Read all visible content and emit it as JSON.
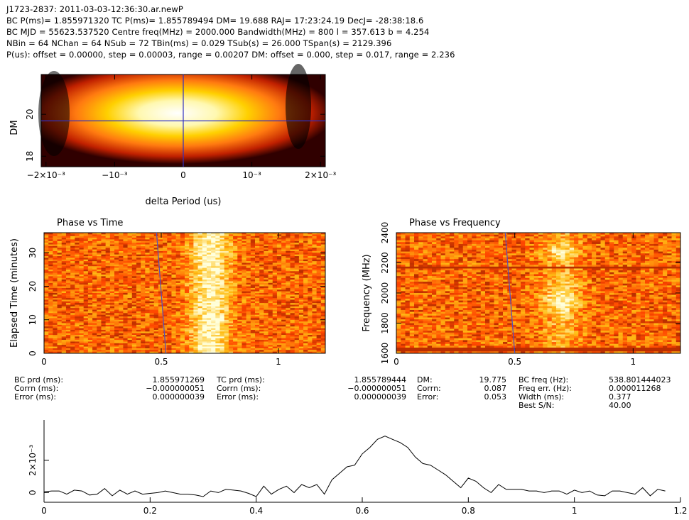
{
  "header": {
    "line1": "J1723-2837: 2011-03-03-12:36:30.ar.newP",
    "line2": "BC P(ms)= 1.855971320 TC P(ms)= 1.855789494 DM= 19.688 RAJ= 17:23:24.19 DecJ= -28:38:18.6",
    "line3": "BC MJD = 55623.537520 Centre freq(MHz) = 2000.000 Bandwidth(MHz) = 800 l = 357.613 b = 4.254",
    "line4": "NBin = 64 NChan = 64 NSub = 72 TBin(ms) = 0.029 TSub(s) = 26.000 TSpan(s) = 2129.396",
    "line5": "P(us): offset = 0.00000, step = 0.00003, range = 0.00207 DM: offset = 0.000, step = 0.017, range = 2.236"
  },
  "stats": {
    "bc_prd_label": "BC prd (ms):",
    "bc_prd": "1.855971269",
    "bc_corrn_label": "Corrn (ms):",
    "bc_corrn": "−0.000000051",
    "bc_err_label": "Error (ms):",
    "bc_err": "0.000000039",
    "tc_prd_label": "TC prd (ms):",
    "tc_prd": "1.855789444",
    "tc_corrn_label": "Corrn (ms):",
    "tc_corrn": "−0.000000051",
    "tc_err_label": "Error (ms):",
    "tc_err": "0.000000039",
    "dm_label": "DM:",
    "dm": "19.775",
    "dm_corrn_label": "Corrn:",
    "dm_corrn": "0.087",
    "dm_err_label": "Error:",
    "dm_err": "0.053",
    "freq_label": "BC freq (Hz):",
    "freq": "538.801444023",
    "freq_err_label": "Freq err. (Hz):",
    "freq_err": "0.000011268",
    "width_label": "Width (ms):",
    "width": "0.377",
    "sn_label": "Best S/N:",
    "sn": "40.00"
  },
  "chart_data": [
    {
      "type": "heatmap",
      "name": "dm-period",
      "xlabel": "delta Period (us)",
      "ylabel": "DM",
      "xlim": [
        -0.00207,
        0.00207
      ],
      "ylim": [
        17.5,
        21.9
      ],
      "xticks": [
        "−2×10⁻³",
        "−10⁻³",
        "0",
        "10⁻³",
        "2×10⁻³"
      ],
      "xtick_values": [
        -0.002,
        -0.001,
        0,
        0.001,
        0.002
      ],
      "yticks": [
        "18",
        "20"
      ],
      "ytick_values": [
        18,
        20
      ],
      "crosshair": {
        "x": 0,
        "y": 19.688
      },
      "peak": {
        "x": 0,
        "y": 19.9
      },
      "colormap": [
        "#000000",
        "#7a0000",
        "#ff6a00",
        "#ffd000",
        "#ffffff"
      ]
    },
    {
      "type": "heatmap",
      "name": "phase-vs-time",
      "title": "Phase vs Time",
      "xlabel": "",
      "ylabel": "Elapsed Time (minutes)",
      "xlim": [
        0,
        1.2
      ],
      "ylim": [
        0,
        36
      ],
      "xticks": [
        "0",
        "0.5",
        "1"
      ],
      "xtick_values": [
        0,
        0.5,
        1
      ],
      "yticks": [
        "0",
        "10",
        "20",
        "30"
      ],
      "ytick_values": [
        0,
        10,
        20,
        30
      ],
      "pulse_phase": 0.71,
      "guide_line": [
        [
          0.48,
          36
        ],
        [
          0.52,
          0
        ]
      ]
    },
    {
      "type": "heatmap",
      "name": "phase-vs-frequency",
      "title": "Phase vs Frequency",
      "xlabel": "",
      "ylabel": "Frequency (MHz)",
      "xlim": [
        0,
        1.2
      ],
      "ylim": [
        1600,
        2400
      ],
      "xticks": [
        "0",
        "0.5",
        "1"
      ],
      "xtick_values": [
        0,
        0.5,
        1
      ],
      "yticks": [
        "1600",
        "1800",
        "2000",
        "2200",
        "2400"
      ],
      "ytick_values": [
        1600,
        1800,
        2000,
        2200,
        2400
      ],
      "pulse_phase": 0.7,
      "guide_line": [
        [
          0.46,
          2400
        ],
        [
          0.5,
          1600
        ]
      ]
    },
    {
      "type": "line",
      "name": "pulse-profile",
      "xlim": [
        0,
        1.2
      ],
      "ylim": [
        -0.0006,
        0.0045
      ],
      "xticks": [
        "0",
        "0.2",
        "0.4",
        "0.6",
        "0.8",
        "1",
        "1.2"
      ],
      "xtick_values": [
        0,
        0.2,
        0.4,
        0.6,
        0.8,
        1.0,
        1.2
      ],
      "yticks": [
        "0",
        "2×10⁻³"
      ],
      "ytick_values": [
        0,
        0.002
      ],
      "x": [
        0.0,
        0.0143,
        0.0286,
        0.0429,
        0.0571,
        0.0714,
        0.0857,
        0.1,
        0.1143,
        0.1286,
        0.1429,
        0.1571,
        0.1714,
        0.1857,
        0.2,
        0.2143,
        0.2286,
        0.2429,
        0.2571,
        0.2714,
        0.2857,
        0.3,
        0.3143,
        0.3286,
        0.3429,
        0.3571,
        0.3714,
        0.3857,
        0.4,
        0.4143,
        0.4286,
        0.4429,
        0.4571,
        0.4714,
        0.4857,
        0.5,
        0.5143,
        0.5286,
        0.5429,
        0.5571,
        0.5714,
        0.5857,
        0.6,
        0.6143,
        0.6286,
        0.6429,
        0.6571,
        0.6714,
        0.6857,
        0.7,
        0.7143,
        0.7286,
        0.7429,
        0.7571,
        0.7714,
        0.7857,
        0.8,
        0.8143,
        0.8286,
        0.8429,
        0.8571,
        0.8714,
        0.8857,
        0.9,
        0.9143,
        0.9286,
        0.9429,
        0.9571,
        0.9714,
        0.9857,
        1.0,
        1.0143,
        1.0286,
        1.0429,
        1.0571,
        1.0714,
        1.0857,
        1.1,
        1.1143,
        1.1286,
        1.1429,
        1.1571,
        1.1714
      ],
      "y": [
        5e-05,
        0.0001,
        0.0001,
        -0.0001,
        0.00015,
        0.0001,
        -0.00015,
        -0.0001,
        0.00025,
        -0.0002,
        0.00015,
        -0.0001,
        0.0001,
        -0.0001,
        -5e-05,
        0.0,
        0.0001,
        0.0,
        -0.0001,
        -0.0001,
        -0.00015,
        -0.00025,
        0.0001,
        0.0,
        0.0002,
        0.00015,
        0.0001,
        -5e-05,
        -0.00025,
        0.0004,
        -0.0001,
        0.0002,
        0.0004,
        0.0,
        0.0005,
        0.0003,
        0.0005,
        -0.0001,
        0.0008,
        0.0012,
        0.0016,
        0.0017,
        0.0024,
        0.0028,
        0.0033,
        0.0035,
        0.0033,
        0.0031,
        0.0028,
        0.0022,
        0.0018,
        0.0017,
        0.0014,
        0.0011,
        0.0007,
        0.0003,
        0.0009,
        0.0007,
        0.0003,
        0.0,
        0.0005,
        0.0002,
        0.0002,
        0.0002,
        0.0001,
        0.0001,
        0.0,
        0.0001,
        0.0001,
        -0.0001,
        0.00015,
        0.0,
        0.0001,
        -0.00015,
        -0.0002,
        0.0001,
        0.0001,
        0.0,
        -0.0001,
        0.0003,
        -0.0002,
        0.0002,
        0.0001
      ]
    }
  ]
}
